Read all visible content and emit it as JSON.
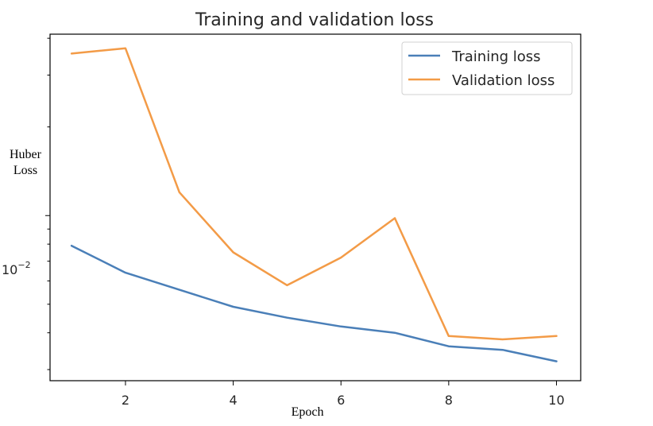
{
  "chart_data": {
    "type": "line",
    "title": "Training and validation loss",
    "xlabel": "Epoch",
    "ylabel": [
      "Huber",
      "Loss"
    ],
    "yscale": "log",
    "ytick_label": {
      "base": "10",
      "exp": "−2"
    },
    "ytick_value": 0.01,
    "xlim": [
      0.6,
      10.45
    ],
    "ylim": [
      0.00275,
      0.0413
    ],
    "x_ticks": [
      2,
      4,
      6,
      8,
      10
    ],
    "y_minor_ticks": [
      0.003,
      0.004,
      0.005,
      0.006,
      0.007,
      0.008,
      0.009,
      0.02,
      0.03,
      0.04
    ],
    "x": [
      1,
      2,
      3,
      4,
      5,
      6,
      7,
      8,
      9,
      10
    ],
    "series": [
      {
        "name": "Training loss",
        "color": "#4a7fb8",
        "values": [
          0.0079,
          0.0064,
          0.0056,
          0.0049,
          0.0045,
          0.0042,
          0.004,
          0.0036,
          0.0035,
          0.0032
        ]
      },
      {
        "name": "Validation loss",
        "color": "#f39b47",
        "values": [
          0.0355,
          0.037,
          0.012,
          0.0075,
          0.0058,
          0.0072,
          0.0098,
          0.0039,
          0.0038,
          0.0039
        ]
      }
    ],
    "grid": false,
    "legend": "top-right"
  }
}
